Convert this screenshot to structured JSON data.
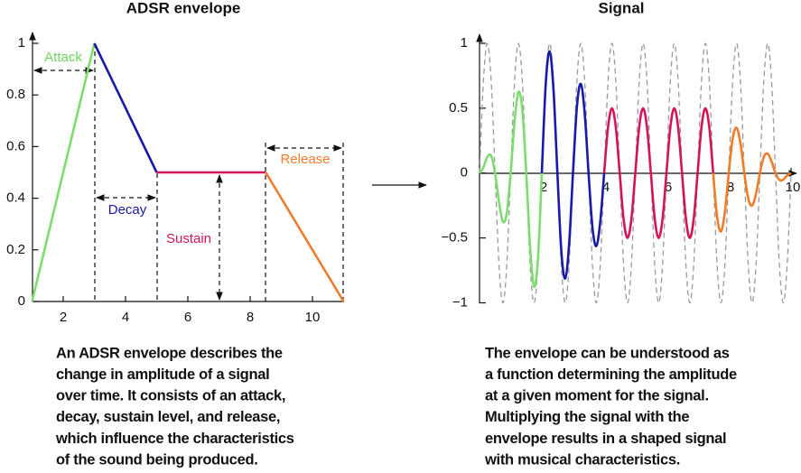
{
  "chart_data": [
    {
      "type": "line",
      "title": "ADSR envelope",
      "caption": [
        "An ADSR envelope describes the",
        "change in amplitude of a signal",
        "over time. It consists of an attack,",
        "decay, sustain level, and release,",
        "which influence the characteristics",
        "of the sound being produced."
      ],
      "xlim": [
        1,
        11
      ],
      "xticks": [
        2,
        4,
        6,
        8,
        10
      ],
      "ylim": [
        0,
        1
      ],
      "yticks": [
        0,
        0.2,
        0.4,
        0.6,
        0.8,
        1
      ],
      "series": [
        {
          "name": "Attack",
          "color": "#7ddc6e",
          "x": [
            1,
            3
          ],
          "values": [
            0,
            1
          ]
        },
        {
          "name": "Decay",
          "color": "#1a1aa8",
          "x": [
            3,
            5
          ],
          "values": [
            1,
            0.5
          ]
        },
        {
          "name": "Sustain",
          "color": "#d4145a",
          "x": [
            5,
            8.5
          ],
          "values": [
            0.5,
            0.5
          ]
        },
        {
          "name": "Release",
          "color": "#f07c2a",
          "x": [
            8.5,
            11
          ],
          "values": [
            0.5,
            0
          ]
        }
      ]
    },
    {
      "type": "line",
      "title": "Signal",
      "smooth": true,
      "caption": [
        "The envelope can be understood as",
        "a function determining the amplitude",
        "at a given moment for the signal.",
        "Multiplying the signal with the",
        "envelope results in a shaped signal",
        "with musical characteristics."
      ],
      "xlim": [
        0,
        10
      ],
      "xticks": [
        2,
        4,
        6,
        8,
        10
      ],
      "ylim": [
        -1,
        1
      ],
      "yticks": [
        {
          "value": -1,
          "label": "−1"
        },
        {
          "value": -0.5,
          "label": "−0.5"
        },
        0,
        0.5,
        1
      ],
      "series": [
        {
          "color": "#9a9a9a",
          "dash": true,
          "x": [
            0,
            0.125,
            0.25,
            0.375,
            0.5,
            0.625,
            0.75,
            0.875,
            1,
            1.125,
            1.25,
            1.375,
            1.5,
            1.625,
            1.75,
            1.875,
            2,
            2.125,
            2.25,
            2.375,
            2.5,
            2.625,
            2.75,
            2.875,
            3,
            3.125,
            3.25,
            3.375,
            3.5,
            3.625,
            3.75,
            3.875,
            4,
            4.125,
            4.25,
            4.375,
            4.5,
            4.625,
            4.75,
            4.875,
            5,
            5.125,
            5.25,
            5.375,
            5.5,
            5.625,
            5.75,
            5.875,
            6,
            6.125,
            6.25,
            6.375,
            6.5,
            6.625,
            6.75,
            6.875,
            7,
            7.125,
            7.25,
            7.375,
            7.5,
            7.625,
            7.75,
            7.875,
            8,
            8.125,
            8.25,
            8.375,
            8.5,
            8.625,
            8.75,
            8.875,
            9,
            9.125,
            9.25,
            9.375,
            9.5,
            9.625,
            9.75,
            9.875,
            10
          ],
          "values": [
            0,
            0.7071,
            1,
            0.7071,
            0,
            -0.7071,
            -1,
            -0.7071,
            0,
            0.7071,
            1,
            0.7071,
            0,
            -0.7071,
            -1,
            -0.7071,
            0,
            0.7071,
            1,
            0.7071,
            0,
            -0.7071,
            -1,
            -0.7071,
            0,
            0.7071,
            1,
            0.7071,
            0,
            -0.7071,
            -1,
            -0.7071,
            0,
            0.7071,
            1,
            0.7071,
            0,
            -0.7071,
            -1,
            -0.7071,
            0,
            0.7071,
            1,
            0.7071,
            0,
            -0.7071,
            -1,
            -0.7071,
            0,
            0.7071,
            1,
            0.7071,
            0,
            -0.7071,
            -1,
            -0.7071,
            0,
            0.7071,
            1,
            0.7071,
            0,
            -0.7071,
            -1,
            -0.7071,
            0,
            0.7071,
            1,
            0.7071,
            0,
            -0.7071,
            -1,
            -0.7071,
            0,
            0.7071,
            1,
            0.7071,
            0,
            -0.7071,
            -1,
            -0.7071,
            0
          ]
        },
        {
          "color": "#7ddc6e",
          "x": [
            0,
            0.125,
            0.25,
            0.375,
            0.5,
            0.625,
            0.75,
            0.875,
            1,
            1.125,
            1.25,
            1.375,
            1.5,
            1.625,
            1.75,
            1.875,
            2
          ],
          "values": [
            0,
            0.0442,
            0.125,
            0.1326,
            0,
            -0.221,
            -0.375,
            -0.3094,
            0,
            0.3977,
            0.625,
            0.4861,
            0,
            -0.5745,
            -0.875,
            -0.6629,
            0
          ]
        },
        {
          "color": "#1a1aa8",
          "x": [
            2,
            2.125,
            2.25,
            2.375,
            2.5,
            2.625,
            2.75,
            2.875,
            3,
            3.125,
            3.25,
            3.375,
            3.5,
            3.625,
            3.75,
            3.875,
            4
          ],
          "values": [
            0,
            0.685,
            0.9375,
            0.6408,
            0,
            -0.5966,
            -0.8125,
            -0.5524,
            0,
            0.5082,
            0.6875,
            0.464,
            0,
            -0.4198,
            -0.5625,
            -0.3756,
            0
          ]
        },
        {
          "color": "#d4145a",
          "x": [
            4,
            4.125,
            4.25,
            4.375,
            4.5,
            4.625,
            4.75,
            4.875,
            5,
            5.125,
            5.25,
            5.375,
            5.5,
            5.625,
            5.75,
            5.875,
            6,
            6.125,
            6.25,
            6.375,
            6.5,
            6.625,
            6.75,
            6.875,
            7,
            7.125,
            7.25,
            7.375,
            7.5
          ],
          "values": [
            0,
            0.3536,
            0.5,
            0.3536,
            0,
            -0.3536,
            -0.5,
            -0.3536,
            0,
            0.3536,
            0.5,
            0.3536,
            0,
            -0.3536,
            -0.5,
            -0.3536,
            0,
            0.3536,
            0.5,
            0.3536,
            0,
            -0.3536,
            -0.5,
            -0.3536,
            0,
            0.3536,
            0.5,
            0.3536,
            0
          ]
        },
        {
          "color": "#f07c2a",
          "x": [
            7.5,
            7.625,
            7.75,
            7.875,
            8,
            8.125,
            8.25,
            8.375,
            8.5,
            8.625,
            8.75,
            8.875,
            9,
            9.125,
            9.25,
            9.375,
            9.5,
            9.625,
            9.75,
            9.875,
            10
          ],
          "values": [
            0,
            -0.3359,
            -0.45,
            -0.3005,
            0,
            0.2652,
            0.35,
            0.2298,
            0,
            -0.1945,
            -0.25,
            -0.1591,
            0,
            0.1237,
            0.15,
            0.0884,
            0,
            -0.053,
            -0.05,
            -0.0177,
            0
          ]
        }
      ]
    }
  ]
}
